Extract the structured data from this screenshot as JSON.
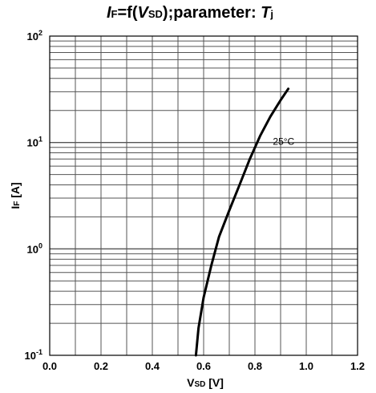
{
  "chart_data": {
    "type": "line",
    "title": {
      "parts": [
        {
          "text": "I",
          "italic": true
        },
        {
          "text": "F",
          "italic": false,
          "sub": true
        },
        {
          "text": "=f(",
          "italic": false
        },
        {
          "text": "V",
          "italic": true
        },
        {
          "text": "SD",
          "italic": false,
          "sub": true
        },
        {
          "text": ");parameter:  ",
          "italic": false
        },
        {
          "text": "T",
          "italic": true
        },
        {
          "text": "j",
          "italic": false,
          "sub": true
        }
      ]
    },
    "xlabel": {
      "main": "V",
      "sub": "SD",
      "unit": " [V]"
    },
    "ylabel": {
      "main": "I",
      "sub": "F",
      "unit": " [A]"
    },
    "xlim": [
      0.0,
      1.2
    ],
    "ylim": [
      0.1,
      100
    ],
    "y_scale": "log",
    "x_ticks": [
      "0.0",
      "0.2",
      "0.4",
      "0.6",
      "0.8",
      "1.0",
      "1.2"
    ],
    "y_ticks": [
      {
        "base": "10",
        "exp": "-1",
        "value": 0.1
      },
      {
        "base": "10",
        "exp": "0",
        "value": 1
      },
      {
        "base": "10",
        "exp": "1",
        "value": 10
      },
      {
        "base": "10",
        "exp": "2",
        "value": 100
      }
    ],
    "grid": true,
    "series": [
      {
        "name": "25°C",
        "color": "#000000",
        "x": [
          0.57,
          0.58,
          0.6,
          0.63,
          0.66,
          0.7,
          0.74,
          0.78,
          0.82,
          0.86,
          0.9,
          0.93
        ],
        "y": [
          0.1,
          0.18,
          0.35,
          0.7,
          1.3,
          2.3,
          4.0,
          7.0,
          11.5,
          17.5,
          25.0,
          32.0
        ]
      }
    ],
    "annotations": [
      {
        "text": "25°C",
        "x": 0.87,
        "y": 9.5
      }
    ]
  }
}
